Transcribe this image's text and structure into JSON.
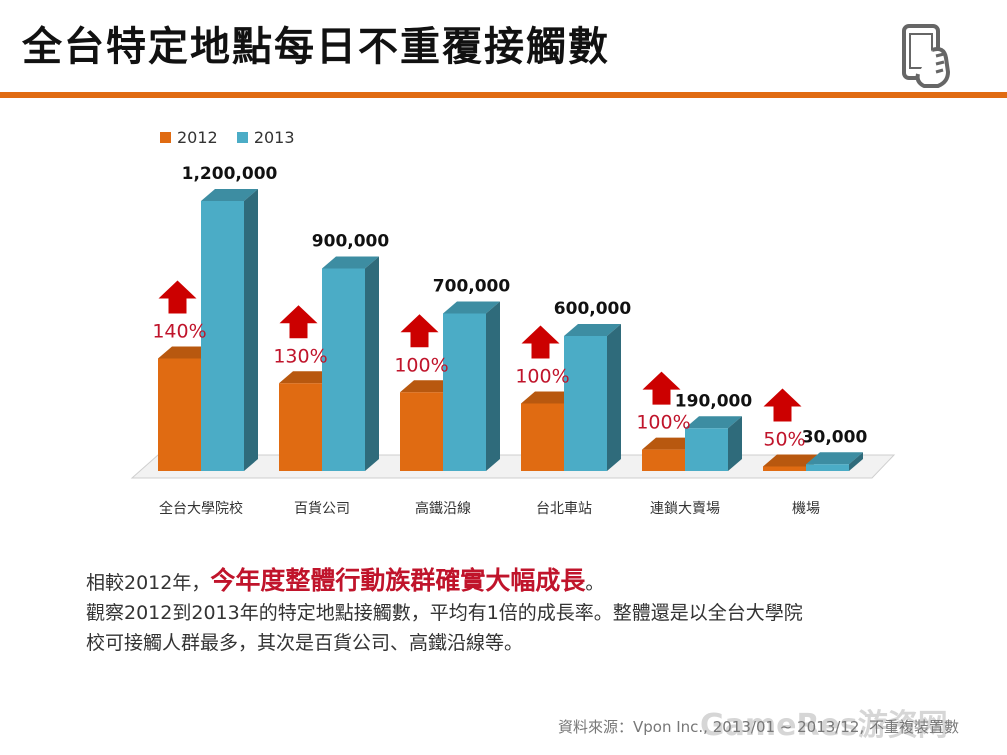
{
  "title": "全台特定地點每日不重覆接觸數",
  "icon": "smartphone-hand-icon",
  "colors": {
    "accent": "#e06b12",
    "s2012": "#e06b12",
    "s2013": "#4bacc6",
    "arrow": "#cc0000",
    "pct": "#c0142b"
  },
  "summary": {
    "line1_prefix": "相較2012年，",
    "line1_highlight": "今年度整體行動族群確實大幅成長",
    "line1_suffix": "。",
    "line2": "觀察2012到2013年的特定地點接觸數，平均有1倍的成長率。整體還是以全台大學院",
    "line3": "校可接觸人群最多，其次是百貨公司、高鐵沿線等。"
  },
  "source": "資料來源：Vpon Inc., 2013/01 ~ 2013/12, 不重複裝置數",
  "watermark": "GameRes游资网",
  "chart_data": {
    "type": "bar",
    "categories": [
      "全台大學院校",
      "百貨公司",
      "高鐵沿線",
      "台北車站",
      "連鎖大賣場",
      "機場"
    ],
    "series": [
      {
        "name": "2012",
        "values": [
          500000,
          390000,
          350000,
          300000,
          95000,
          20000
        ]
      },
      {
        "name": "2013",
        "values": [
          1200000,
          900000,
          700000,
          600000,
          190000,
          30000
        ]
      }
    ],
    "value_labels": [
      "1,200,000",
      "900,000",
      "700,000",
      "600,000",
      "190,000",
      "30,000"
    ],
    "growth_labels": [
      "140%",
      "130%",
      "100%",
      "100%",
      "100%",
      "50%"
    ],
    "ylim": [
      0,
      1200000
    ],
    "legend_position": "top-left",
    "grid": false
  }
}
